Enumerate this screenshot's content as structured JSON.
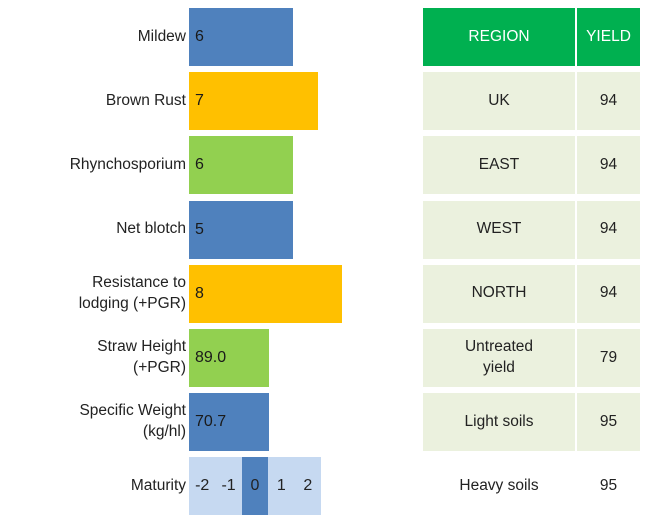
{
  "ratings": [
    {
      "label": "Mildew",
      "value": 6
    },
    {
      "label": "Brown Rust",
      "value": 7
    },
    {
      "label": "Rhynchosporium",
      "value": 6
    },
    {
      "label": "Net blotch",
      "value": 5
    },
    {
      "label": "Resistance to lodging (+PGR)",
      "value": 8
    },
    {
      "label": "Straw Height (+PGR)",
      "value": "89.0"
    },
    {
      "label": "Specific Weight (kg/hl)",
      "value": 70.7
    }
  ],
  "maturity": {
    "label": "Maturity",
    "scale": [
      -2,
      -1,
      0,
      1,
      2
    ],
    "selected": 0
  },
  "table": {
    "header": [
      "REGION",
      "YIELD"
    ],
    "rows": [
      [
        "UK",
        94
      ],
      [
        "EAST",
        94
      ],
      [
        "WEST",
        94
      ],
      [
        "NORTH",
        94
      ],
      [
        "Untreated yield",
        79
      ],
      [
        "Light soils",
        95
      ],
      [
        "Heavy soils",
        95
      ]
    ]
  }
}
